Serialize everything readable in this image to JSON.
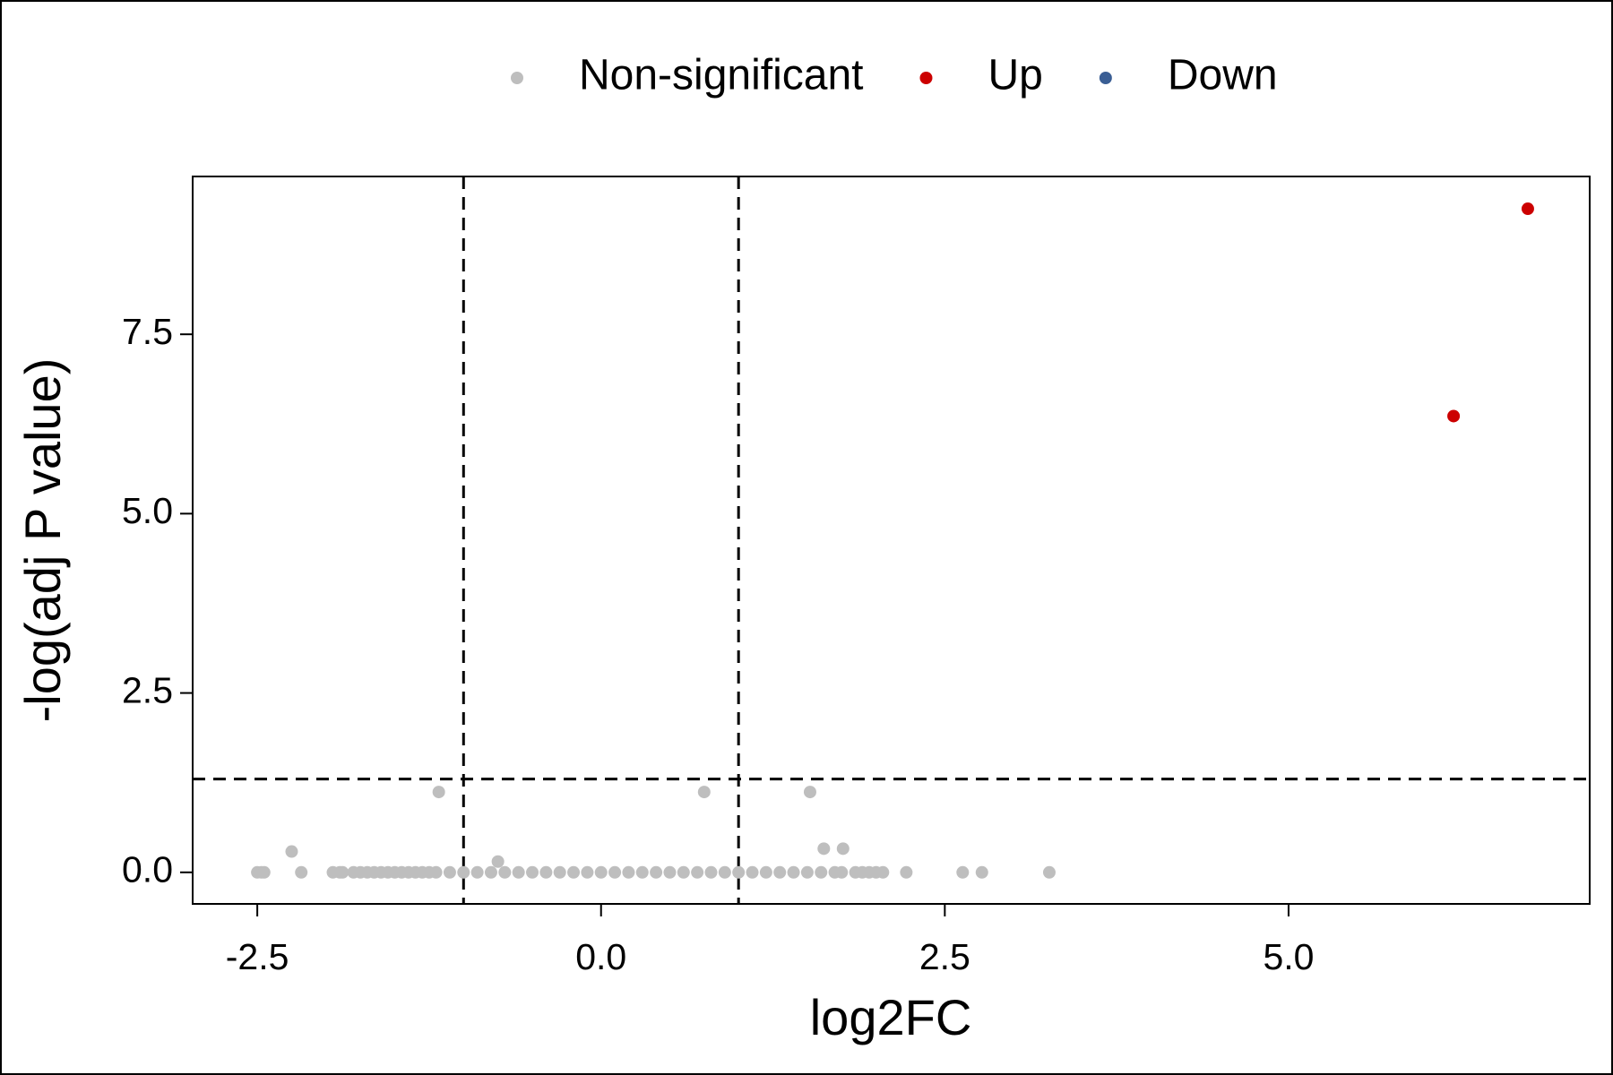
{
  "chart_data": {
    "type": "scatter",
    "x_label": "log2FC",
    "y_label": "-log(adj P value)",
    "xlim": [
      -2.97,
      7.19
    ],
    "ylim": [
      -0.44,
      9.7
    ],
    "xticks": [
      -2.5,
      {
        "value": 0,
        "label": "0.0"
      },
      2.5,
      {
        "value": 5,
        "label": "5.0"
      }
    ],
    "yticks": [
      {
        "value": 0,
        "label": "0.0"
      },
      2.5,
      {
        "value": 5,
        "label": "5.0"
      },
      7.5
    ],
    "vlines": [
      -1,
      1
    ],
    "hline": 1.3,
    "legend": "top",
    "series": [
      {
        "name": "Non-significant",
        "color": "#bebebe",
        "x": [
          -2.5,
          -2.47,
          -2.45,
          -2.18,
          -1.95,
          -1.9,
          -1.88,
          -1.8,
          -1.75,
          -1.7,
          -1.65,
          -1.6,
          -1.55,
          -1.5,
          -1.45,
          -1.4,
          -1.35,
          -1.3,
          -1.25,
          -1.2,
          -1.1,
          -1.0,
          -0.9,
          -0.8,
          -0.7,
          -0.6,
          -0.5,
          -0.4,
          -0.3,
          -0.2,
          -0.1,
          0,
          0.1,
          0.2,
          0.3,
          0.4,
          0.5,
          0.6,
          0.7,
          0.8,
          0.9,
          1.0,
          1.1,
          1.2,
          1.3,
          1.4,
          1.5,
          1.6,
          1.7,
          1.75,
          1.85,
          1.9,
          1.95,
          2.0,
          2.05,
          2.22,
          2.63,
          2.77,
          3.26,
          -1.18,
          0.75,
          1.52,
          -2.25,
          -0.75,
          1.62,
          1.76
        ],
        "values": [
          0,
          0,
          0,
          0,
          0,
          0,
          0,
          0,
          0,
          0,
          0,
          0,
          0,
          0,
          0,
          0,
          0,
          0,
          0,
          0,
          0,
          0,
          0,
          0,
          0,
          0,
          0,
          0,
          0,
          0,
          0,
          0,
          0,
          0,
          0,
          0,
          0,
          0,
          0,
          0,
          0,
          0,
          0,
          0,
          0,
          0,
          0,
          0,
          0,
          0,
          0,
          0,
          0,
          0,
          0,
          0,
          0,
          0,
          0,
          1.12,
          1.12,
          1.12,
          0.29,
          0.15,
          0.33,
          0.33
        ]
      },
      {
        "name": "Up",
        "color": "#cc0000",
        "x": [
          6.74,
          6.2
        ],
        "values": [
          9.25,
          6.36
        ]
      },
      {
        "name": "Down",
        "color": "#3a5e94",
        "x": [],
        "values": []
      }
    ]
  }
}
